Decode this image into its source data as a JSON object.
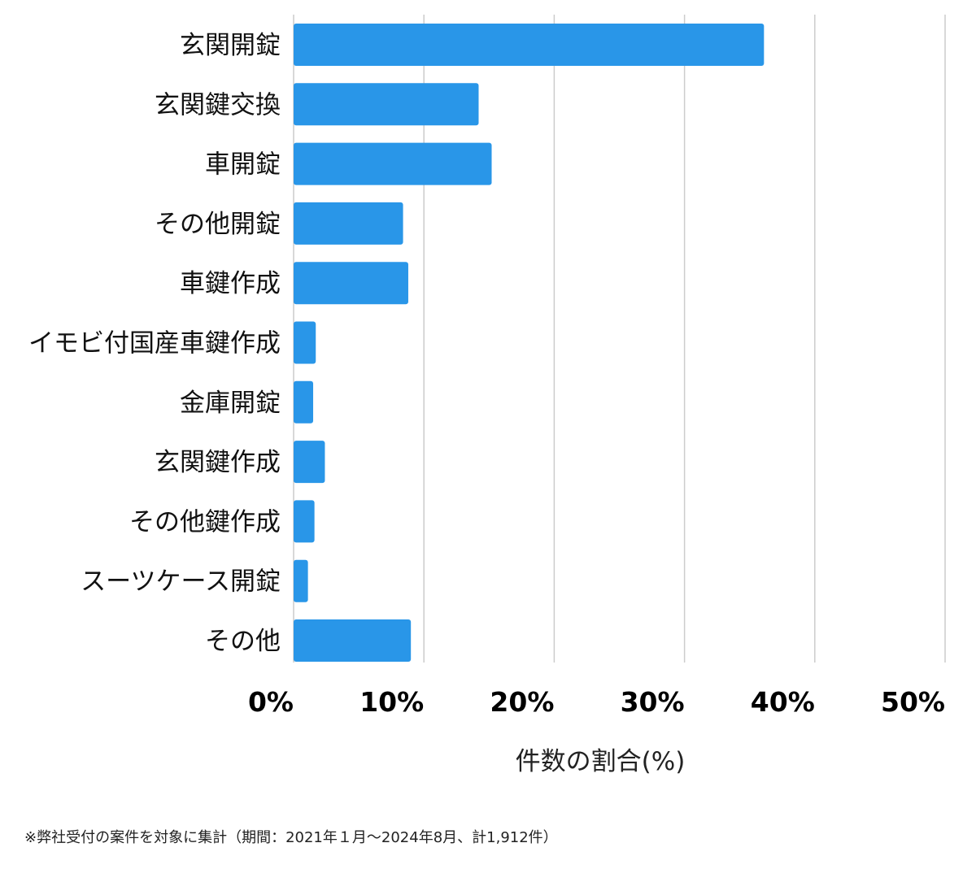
{
  "chart_data": {
    "type": "bar",
    "orientation": "horizontal",
    "categories": [
      "玄関開錠",
      "玄関鍵交換",
      "車開錠",
      "その他開錠",
      "車鍵作成",
      "イモビ付国産車鍵作成",
      "金庫開錠",
      "玄関鍵作成",
      "その他鍵作成",
      "スーツケース開錠",
      "その他"
    ],
    "values": [
      36.1,
      14.2,
      15.2,
      8.4,
      8.8,
      1.7,
      1.5,
      2.4,
      1.6,
      1.1,
      9.0
    ],
    "xlabel": "件数の割合(%)",
    "ylabel": "",
    "xlim": [
      0,
      50
    ],
    "xticks": [
      0,
      10,
      20,
      30,
      40,
      50
    ],
    "xtick_labels": [
      "0%",
      "10%",
      "20%",
      "30%",
      "40%",
      "50%"
    ],
    "grid": "vertical",
    "bar_color": "#2996e8",
    "grid_color": "#cccccc"
  },
  "footnote": "※弊社受付の案件を対象に集計（期間：2021年１月〜2024年8月、計1,912件）"
}
